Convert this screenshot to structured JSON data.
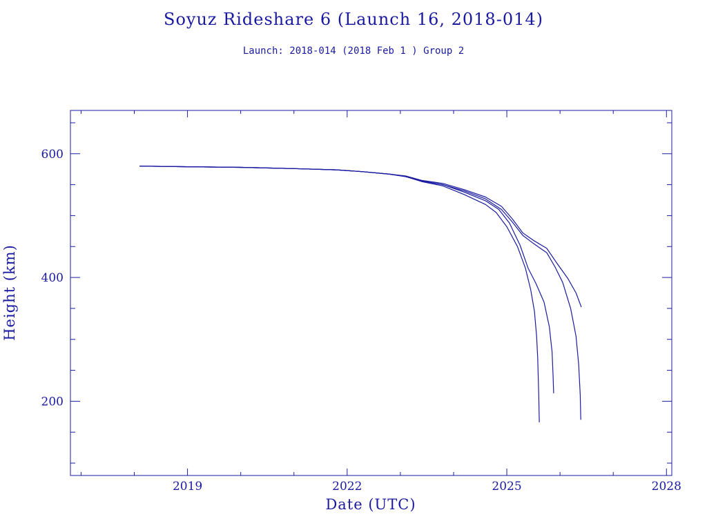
{
  "chart_data": {
    "type": "line",
    "title": "Soyuz Rideshare 6 (Launch 16, 2018-014)",
    "subtitle": "Launch: 2018-014  (2018 Feb  1 )  Group 2",
    "xlabel": "Date (UTC)",
    "ylabel": "Height (km)",
    "xlim": [
      2016.8,
      2028.1
    ],
    "ylim": [
      80,
      670
    ],
    "x_ticks": [
      2019,
      2022,
      2025,
      2028
    ],
    "y_ticks": [
      200,
      400,
      600
    ],
    "grid": false,
    "colors": {
      "line": "#1a1aa0",
      "axis": "#1a1aa0",
      "text": "#1a1aa0"
    },
    "series": [
      {
        "x": [
          2018.1,
          2019.0,
          2020.0,
          2021.0,
          2021.8,
          2022.3,
          2022.8,
          2023.1,
          2023.4,
          2023.8,
          2024.2,
          2024.6,
          2024.8,
          2025.0,
          2025.2,
          2025.35,
          2025.45,
          2025.52,
          2025.56,
          2025.58,
          2025.6,
          2025.61
        ],
        "y": [
          580,
          579,
          578,
          576,
          574,
          571,
          567,
          563,
          555,
          548,
          534,
          518,
          505,
          482,
          450,
          415,
          380,
          345,
          305,
          270,
          210,
          166
        ]
      },
      {
        "x": [
          2018.1,
          2019.0,
          2020.0,
          2021.0,
          2021.8,
          2022.3,
          2022.8,
          2023.1,
          2023.4,
          2023.8,
          2024.2,
          2024.6,
          2024.85,
          2025.05,
          2025.25,
          2025.4,
          2025.55,
          2025.7,
          2025.8,
          2025.85,
          2025.87,
          2025.88
        ],
        "y": [
          580,
          579,
          578,
          576,
          574,
          571,
          567,
          563,
          556,
          550,
          538,
          524,
          510,
          488,
          452,
          415,
          390,
          360,
          320,
          280,
          240,
          213
        ]
      },
      {
        "x": [
          2018.1,
          2019.0,
          2020.0,
          2021.0,
          2021.8,
          2022.3,
          2022.8,
          2023.1,
          2023.4,
          2023.8,
          2024.2,
          2024.6,
          2024.9,
          2025.1,
          2025.3,
          2025.5,
          2025.75,
          2025.9,
          2026.05,
          2026.2,
          2026.3,
          2026.35,
          2026.38,
          2026.39
        ],
        "y": [
          580,
          579,
          578,
          576,
          574,
          571,
          567,
          563,
          556,
          550,
          540,
          527,
          510,
          490,
          468,
          455,
          440,
          418,
          392,
          350,
          305,
          260,
          210,
          170
        ]
      },
      {
        "x": [
          2018.1,
          2019.0,
          2020.0,
          2021.0,
          2021.8,
          2022.3,
          2022.8,
          2023.1,
          2023.4,
          2023.8,
          2024.2,
          2024.6,
          2024.9,
          2025.1,
          2025.3,
          2025.5,
          2025.75,
          2025.95,
          2026.15,
          2026.3,
          2026.4
        ],
        "y": [
          580,
          579,
          578,
          576,
          574,
          571,
          567,
          564,
          557,
          552,
          542,
          530,
          515,
          495,
          472,
          460,
          447,
          422,
          398,
          375,
          352
        ]
      }
    ]
  }
}
